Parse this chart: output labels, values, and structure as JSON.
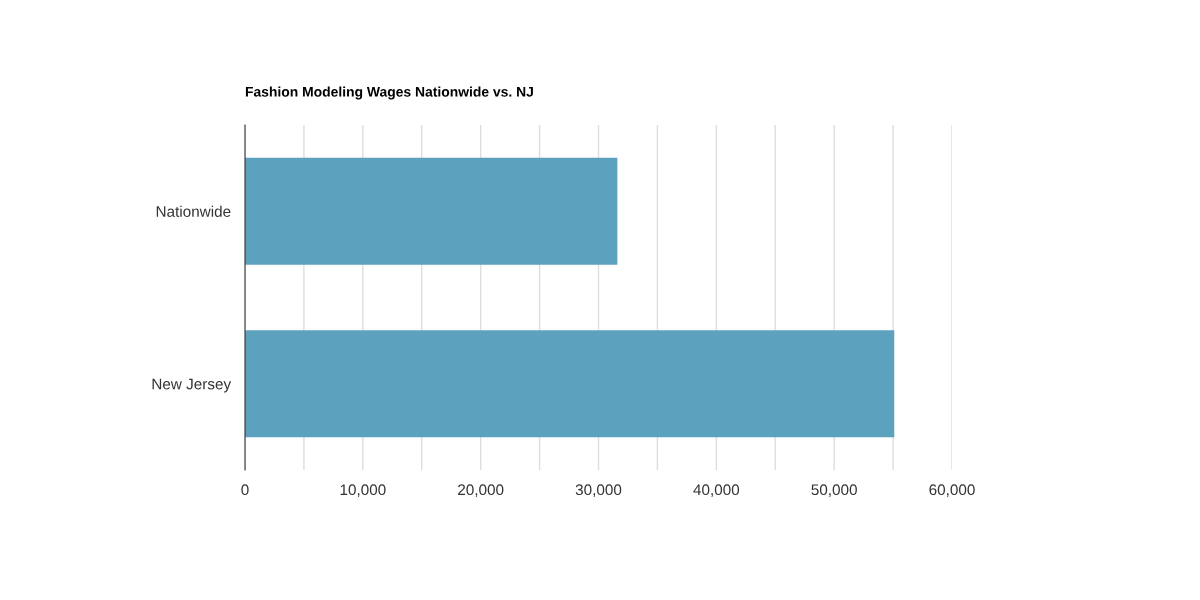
{
  "chart_data": {
    "type": "bar",
    "orientation": "horizontal",
    "title": "Fashion Modeling Wages Nationwide vs. NJ",
    "categories": [
      "Nationwide",
      "New Jersey"
    ],
    "series": [
      {
        "color": "#5ca2bf",
        "values": [
          31600,
          55100
        ]
      }
    ],
    "xlim": [
      0,
      60000
    ],
    "xticks": [
      0,
      {
        "value": 5000,
        "label": null
      },
      {
        "value": 10000,
        "label": "10,000"
      },
      {
        "value": 15000,
        "label": null
      },
      {
        "value": 20000,
        "label": "20,000"
      },
      {
        "value": 25000,
        "label": null
      },
      {
        "value": 30000,
        "label": "30,000"
      },
      {
        "value": 35000,
        "label": null
      },
      {
        "value": 40000,
        "label": "40,000"
      },
      {
        "value": 45000,
        "label": null
      },
      {
        "value": 50000,
        "label": "50,000"
      },
      {
        "value": 55000,
        "label": null
      },
      {
        "value": 60000,
        "label": "60,000"
      }
    ],
    "grid": "x"
  }
}
